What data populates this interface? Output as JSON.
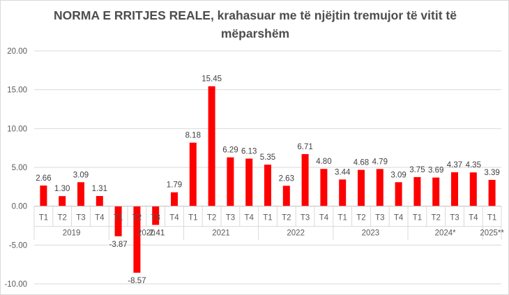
{
  "chart_data": {
    "type": "bar",
    "title": "NORMA E RRITJES REALE, krahasuar me të njëjtin tremujor të vitit të mëparshëm",
    "ylim": [
      -10,
      20
    ],
    "y_ticks": [
      "-10.00",
      "-5.00",
      "0.00",
      "5.00",
      "10.00",
      "15.00",
      "20.00"
    ],
    "grid": true,
    "bar_color": "#ff0000",
    "groups": [
      {
        "year": "2019",
        "quarters": [
          "T1",
          "T2",
          "T3",
          "T4"
        ],
        "values": [
          2.66,
          1.3,
          3.09,
          1.31
        ],
        "labels": [
          "2.66",
          "1.30",
          "3.09",
          "1.31"
        ]
      },
      {
        "year": "2020",
        "quarters": [
          "T1",
          "T2",
          "T3",
          "T4"
        ],
        "values": [
          -3.87,
          -8.57,
          -2.41,
          1.79
        ],
        "labels": [
          "-3.87",
          "-8.57",
          "-2.41",
          "1.79"
        ]
      },
      {
        "year": "2021",
        "quarters": [
          "T1",
          "T2",
          "T3",
          "T4"
        ],
        "values": [
          8.18,
          15.45,
          6.29,
          6.13
        ],
        "labels": [
          "8.18",
          "15.45",
          "6.29",
          "6.13"
        ]
      },
      {
        "year": "2022",
        "quarters": [
          "T1",
          "T2",
          "T3",
          "T4"
        ],
        "values": [
          5.35,
          2.63,
          6.71,
          4.8
        ],
        "labels": [
          "5.35",
          "2.63",
          "6.71",
          "4.80"
        ]
      },
      {
        "year": "2023",
        "quarters": [
          "T1",
          "T2",
          "T3",
          "T4"
        ],
        "values": [
          3.44,
          4.68,
          4.79,
          3.09
        ],
        "labels": [
          "3.44",
          "4.68",
          "4.79",
          "3.09"
        ]
      },
      {
        "year": "2024*",
        "quarters": [
          "T1",
          "T2",
          "T3",
          "T4"
        ],
        "values": [
          3.75,
          3.69,
          4.37,
          4.35
        ],
        "labels": [
          "3.75",
          "3.69",
          "4.37",
          "4.35"
        ]
      },
      {
        "year": "2025**",
        "quarters": [
          "T1"
        ],
        "values": [
          3.39
        ],
        "labels": [
          "3.39"
        ]
      }
    ]
  }
}
